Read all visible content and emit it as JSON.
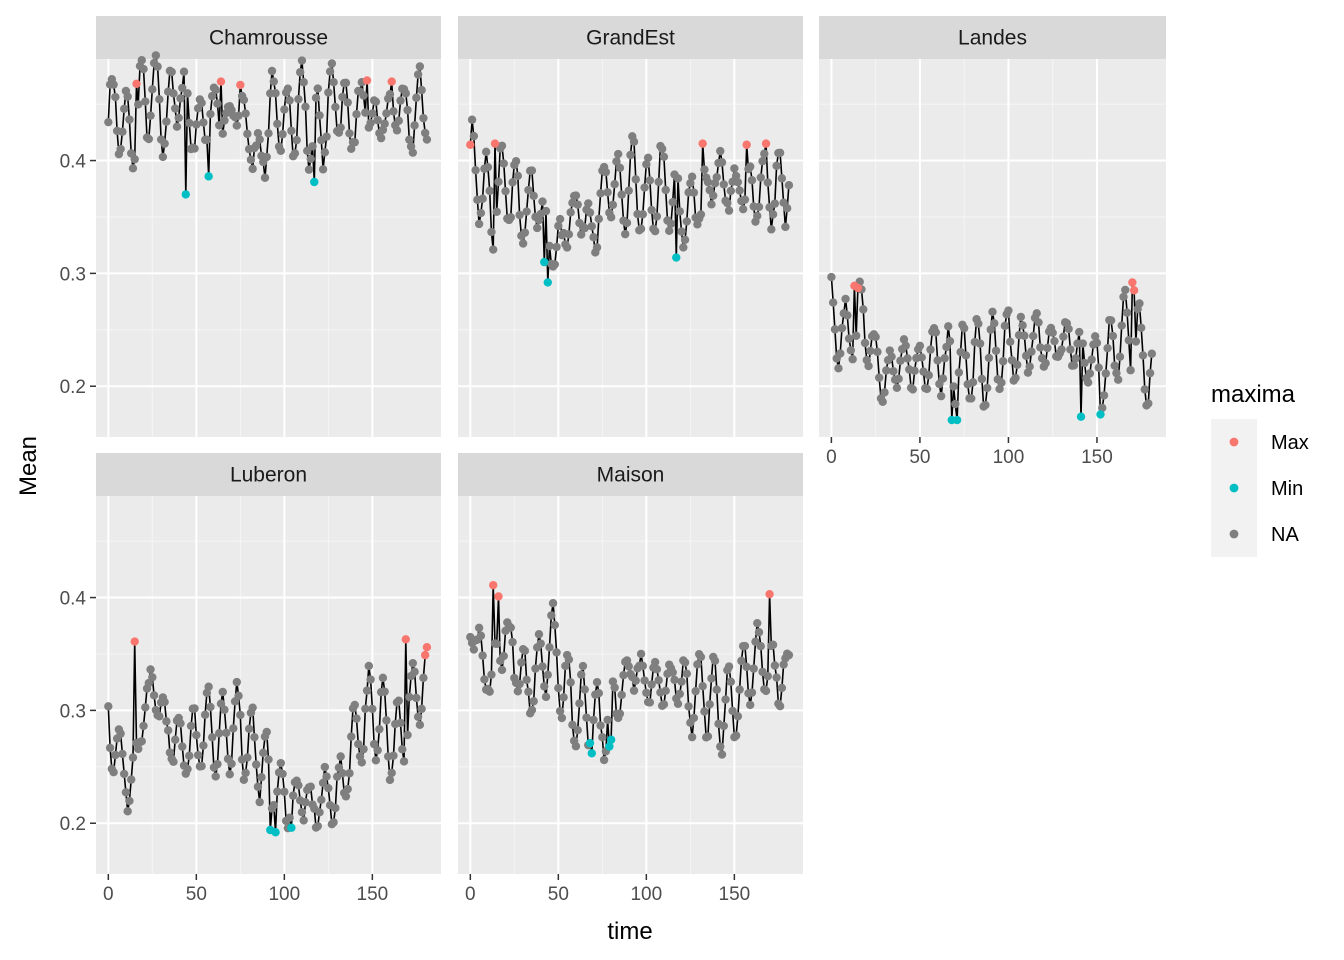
{
  "chart_data": {
    "type": "scatter",
    "xlabel": "time",
    "ylabel": "Mean",
    "xlim": [
      -7,
      189
    ],
    "x_ticks": [
      0,
      50,
      100,
      150
    ],
    "legend": {
      "title": "maxima",
      "position": "right",
      "entries": [
        {
          "label": "Max",
          "color": "#F8766D"
        },
        {
          "label": "Min",
          "color": "#00BFC4"
        },
        {
          "label": "NA",
          "color": "#7F7F7F"
        }
      ]
    },
    "grid": true,
    "line_color": "#000000",
    "panels": [
      {
        "name": "Chamrousse",
        "ylim": [
          0.155,
          0.49
        ],
        "y_ticks": [
          0.2,
          0.3,
          0.4
        ],
        "base": [
          0.44,
          0.45,
          0.43,
          0.42,
          0.44,
          0.455,
          0.46,
          0.45,
          0.44,
          0.45,
          0.465,
          0.45,
          0.43,
          0.43,
          0.44,
          0.45,
          0.44,
          0.43,
          0.45,
          0.44,
          0.42,
          0.4,
          0.41,
          0.45,
          0.44,
          0.43,
          0.44,
          0.45,
          0.44,
          0.42,
          0.43,
          0.44,
          0.46,
          0.45,
          0.43,
          0.44,
          0.45,
          0.44,
          0.43,
          0.44,
          0.44,
          0.45,
          0.44,
          0.43,
          0.455,
          0.45
        ],
        "maxima": [
          [
            16,
            0.468
          ],
          [
            64,
            0.47
          ],
          [
            75,
            0.467
          ],
          [
            147,
            0.471
          ],
          [
            161,
            0.47
          ]
        ],
        "minima": [
          [
            44,
            0.37
          ],
          [
            57,
            0.386
          ],
          [
            117,
            0.381
          ]
        ]
      },
      {
        "name": "GrandEst",
        "ylim": [
          0.155,
          0.49
        ],
        "y_ticks": [
          0.2,
          0.3,
          0.4
        ],
        "base": [
          0.4,
          0.39,
          0.37,
          0.36,
          0.37,
          0.38,
          0.37,
          0.36,
          0.36,
          0.37,
          0.36,
          0.33,
          0.32,
          0.33,
          0.35,
          0.36,
          0.35,
          0.34,
          0.35,
          0.37,
          0.38,
          0.37,
          0.37,
          0.38,
          0.37,
          0.36,
          0.37,
          0.38,
          0.37,
          0.36,
          0.35,
          0.36,
          0.36,
          0.37,
          0.38,
          0.39,
          0.38,
          0.37,
          0.38,
          0.37,
          0.37,
          0.38,
          0.38,
          0.37,
          0.375,
          0.39
        ],
        "maxima": [
          [
            0,
            0.414
          ],
          [
            14,
            0.415
          ],
          [
            132,
            0.415
          ],
          [
            157,
            0.414
          ],
          [
            168,
            0.415
          ]
        ],
        "minima": [
          [
            42,
            0.31
          ],
          [
            44,
            0.292
          ],
          [
            117,
            0.314
          ]
        ]
      },
      {
        "name": "Landes",
        "ylim": [
          0.155,
          0.49
        ],
        "y_ticks": [
          0.2,
          0.3,
          0.4
        ],
        "base": [
          0.255,
          0.25,
          0.24,
          0.25,
          0.26,
          0.25,
          0.23,
          0.21,
          0.21,
          0.215,
          0.22,
          0.22,
          0.215,
          0.22,
          0.23,
          0.23,
          0.22,
          0.215,
          0.215,
          0.22,
          0.225,
          0.215,
          0.22,
          0.225,
          0.23,
          0.235,
          0.23,
          0.235,
          0.24,
          0.24,
          0.235,
          0.235,
          0.24,
          0.24,
          0.235,
          0.23,
          0.225,
          0.22,
          0.215,
          0.225,
          0.24,
          0.25,
          0.245,
          0.235,
          0.22,
          0.21
        ],
        "maxima": [
          [
            13,
            0.289
          ],
          [
            15,
            0.287
          ],
          [
            170,
            0.292
          ],
          [
            171,
            0.285
          ]
        ],
        "minima": [
          [
            68,
            0.17
          ],
          [
            71,
            0.17
          ],
          [
            141,
            0.173
          ],
          [
            152,
            0.175
          ]
        ]
      },
      {
        "name": "Luberon",
        "ylim": [
          0.155,
          0.49
        ],
        "y_ticks": [
          0.2,
          0.3,
          0.4
        ],
        "base": [
          0.285,
          0.27,
          0.25,
          0.23,
          0.26,
          0.3,
          0.32,
          0.31,
          0.29,
          0.27,
          0.27,
          0.27,
          0.27,
          0.28,
          0.29,
          0.28,
          0.27,
          0.28,
          0.29,
          0.28,
          0.27,
          0.26,
          0.25,
          0.24,
          0.23,
          0.22,
          0.22,
          0.225,
          0.22,
          0.21,
          0.22,
          0.23,
          0.22,
          0.235,
          0.26,
          0.28,
          0.29,
          0.3,
          0.29,
          0.29,
          0.28,
          0.27,
          0.29,
          0.31,
          0.32,
          0.33
        ],
        "maxima": [
          [
            15,
            0.361
          ],
          [
            169,
            0.363
          ],
          [
            181,
            0.356
          ],
          [
            180,
            0.349
          ]
        ],
        "minima": [
          [
            92,
            0.194
          ],
          [
            95,
            0.192
          ],
          [
            104,
            0.196
          ]
        ]
      },
      {
        "name": "Maison",
        "ylim": [
          0.155,
          0.49
        ],
        "y_ticks": [
          0.2,
          0.3,
          0.4
        ],
        "base": [
          0.375,
          0.36,
          0.33,
          0.33,
          0.35,
          0.37,
          0.35,
          0.33,
          0.32,
          0.33,
          0.34,
          0.36,
          0.35,
          0.33,
          0.31,
          0.3,
          0.3,
          0.3,
          0.29,
          0.29,
          0.3,
          0.32,
          0.33,
          0.34,
          0.33,
          0.32,
          0.33,
          0.32,
          0.32,
          0.33,
          0.32,
          0.31,
          0.32,
          0.32,
          0.31,
          0.3,
          0.3,
          0.31,
          0.32,
          0.33,
          0.34,
          0.35,
          0.34,
          0.33,
          0.33,
          0.34
        ],
        "maxima": [
          [
            13,
            0.411
          ],
          [
            16,
            0.401
          ],
          [
            170,
            0.403
          ]
        ],
        "minima": [
          [
            68,
            0.271
          ],
          [
            69,
            0.262
          ],
          [
            79,
            0.268
          ],
          [
            80,
            0.274
          ]
        ]
      }
    ]
  }
}
